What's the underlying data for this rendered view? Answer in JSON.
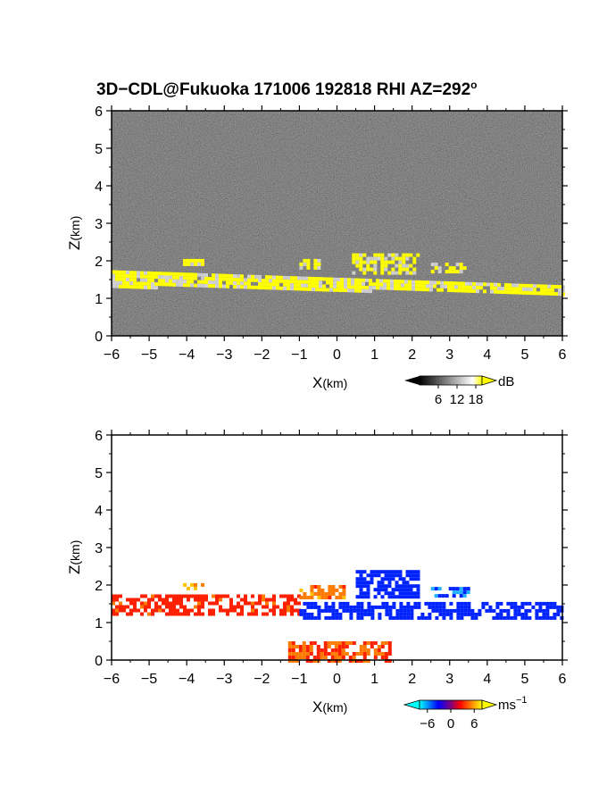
{
  "title": "3D−CDL@Fukuoka 171006 192818 RHI AZ=292",
  "title_deg": "o",
  "chart_data": [
    {
      "type": "heatmap",
      "name": "reflectivity",
      "xlabel_main": "X",
      "xlabel_unit": "(km)",
      "ylabel_main": "Z",
      "ylabel_unit": "(km)",
      "xlim": [
        -6,
        6
      ],
      "ylim": [
        0,
        6
      ],
      "x_ticks": [
        "−6",
        "−5",
        "−4",
        "−3",
        "−2",
        "−1",
        "0",
        "1",
        "2",
        "3",
        "4",
        "5",
        "6"
      ],
      "y_ticks": [
        "0",
        "1",
        "2",
        "3",
        "4",
        "5",
        "6"
      ],
      "colorbar": {
        "unit": "dB",
        "ticks": [
          "6",
          "12",
          "18"
        ],
        "range": [
          0,
          20
        ],
        "colors": [
          "#000000",
          "#ffffff",
          "#ffff00"
        ]
      },
      "background": "noise (dark gray)",
      "features": [
        {
          "label": "main layer",
          "x": [
            -6,
            6
          ],
          "z_top": [
            1.75,
            1.35
          ],
          "z_bottom": [
            1.35,
            1.15
          ],
          "value_db": 18
        },
        {
          "label": "cloud patch",
          "x": [
            -4.1,
            -3.6
          ],
          "z": [
            1.9,
            2.05
          ],
          "value_db": 18
        },
        {
          "label": "cloud patch",
          "x": [
            -1.0,
            -0.5
          ],
          "z": [
            1.85,
            2.05
          ],
          "value_db": 18
        },
        {
          "label": "cloud patch",
          "x": [
            0.4,
            2.2
          ],
          "z": [
            1.7,
            2.2
          ],
          "value_db": 18
        },
        {
          "label": "cloud patch",
          "x": [
            2.5,
            3.4
          ],
          "z": [
            1.7,
            1.95
          ],
          "value_db": 18
        }
      ]
    },
    {
      "type": "heatmap",
      "name": "doppler velocity",
      "xlabel_main": "X",
      "xlabel_unit": "(km)",
      "ylabel_main": "Z",
      "ylabel_unit": "(km)",
      "xlim": [
        -6,
        6
      ],
      "ylim": [
        0,
        6
      ],
      "x_ticks": [
        "−6",
        "−5",
        "−4",
        "−3",
        "−2",
        "−1",
        "0",
        "1",
        "2",
        "3",
        "4",
        "5",
        "6"
      ],
      "y_ticks": [
        "0",
        "1",
        "2",
        "3",
        "4",
        "5",
        "6"
      ],
      "colorbar": {
        "unit_main": "ms",
        "unit_exp": "−1",
        "ticks": [
          "−6",
          "0",
          "6"
        ],
        "range": [
          -8,
          8
        ],
        "colors": [
          "#00ffff",
          "#0000ff",
          "#ff0000",
          "#ffff00"
        ]
      },
      "features": [
        {
          "label": "layer west",
          "x": [
            -6,
            -1.0
          ],
          "z": [
            1.25,
            1.75
          ],
          "value_ms": 2
        },
        {
          "label": "layer east",
          "x": [
            -1.0,
            6
          ],
          "z": [
            1.15,
            1.55
          ],
          "value_ms": -3
        },
        {
          "label": "upper patch",
          "x": [
            -1.0,
            0.2
          ],
          "z": [
            1.7,
            2.0
          ],
          "value_ms": 4
        },
        {
          "label": "upper patch",
          "x": [
            0.5,
            2.2
          ],
          "z": [
            1.65,
            2.4
          ],
          "value_ms": -3
        },
        {
          "label": "upper patch",
          "x": [
            2.5,
            3.5
          ],
          "z": [
            1.7,
            1.95
          ],
          "value_ms": -5
        },
        {
          "label": "small patch",
          "x": [
            -4.1,
            -3.6
          ],
          "z": [
            1.9,
            2.05
          ],
          "value_ms": 5
        },
        {
          "label": "low echo",
          "x": [
            -1.3,
            1.4
          ],
          "z": [
            0,
            0.5
          ],
          "value_ms": 3
        }
      ]
    }
  ]
}
